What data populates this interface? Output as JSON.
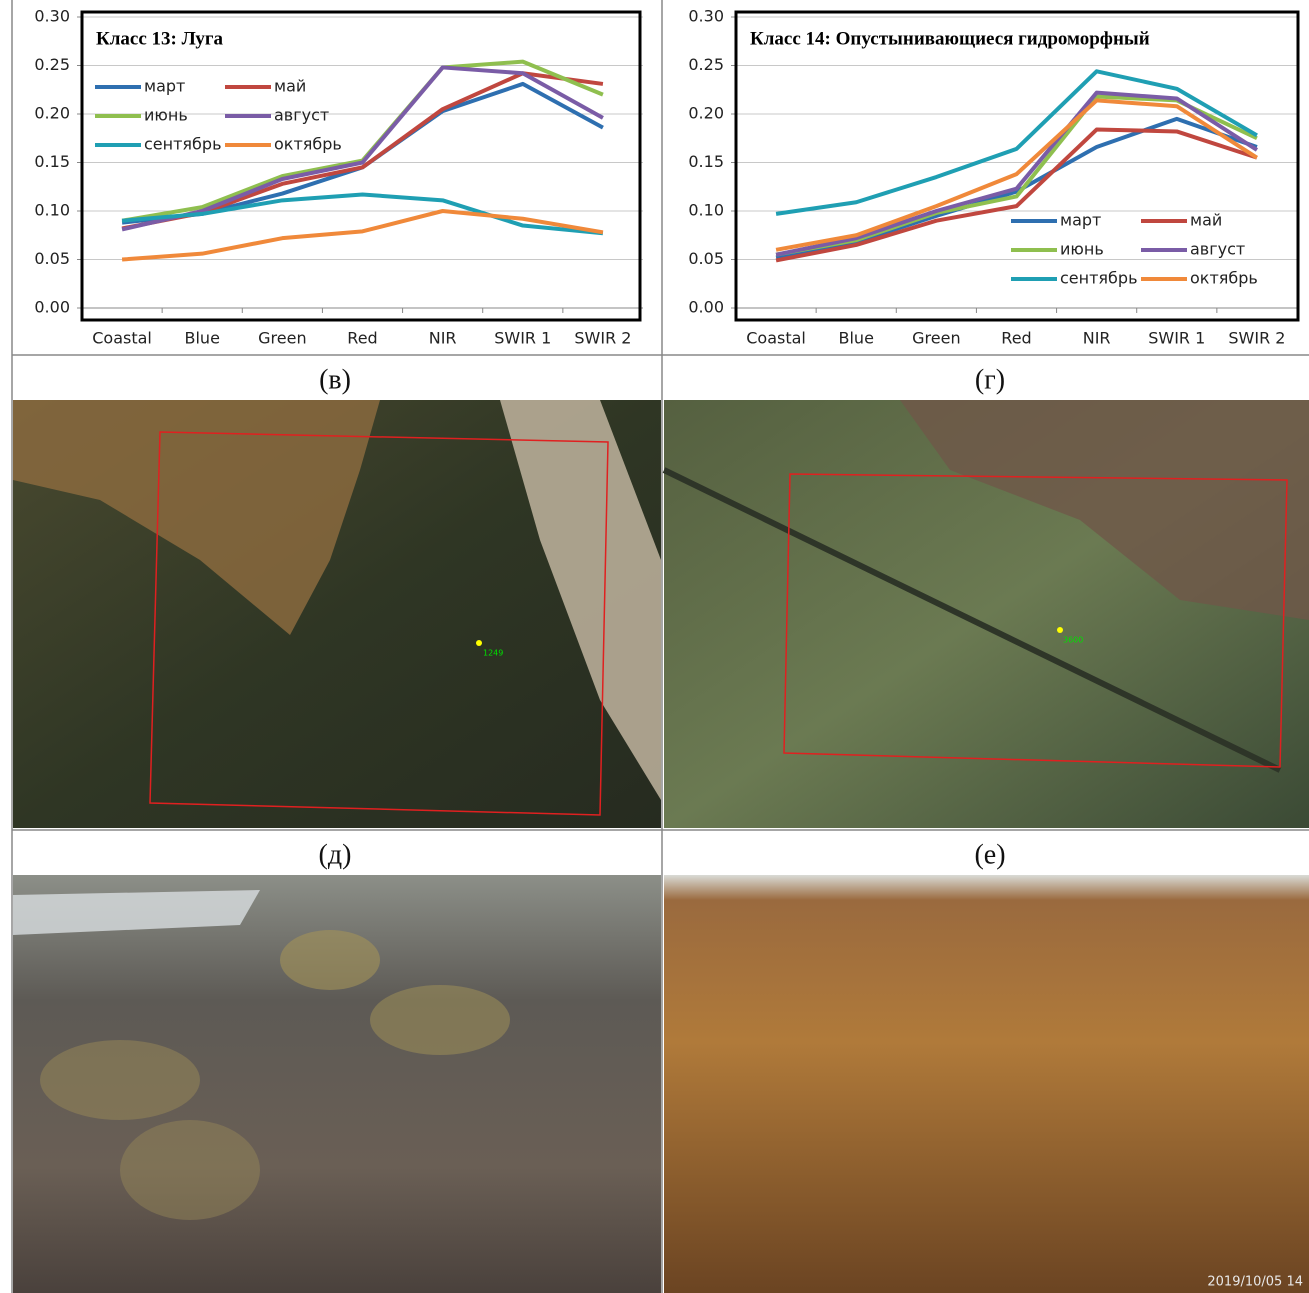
{
  "chart_data": [
    {
      "type": "line",
      "title": "Класс 13: Луга",
      "categories": [
        "Coastal",
        "Blue",
        "Green",
        "Red",
        "NIR",
        "SWIR 1",
        "SWIR 2"
      ],
      "series": [
        {
          "name": "март",
          "color": "#2e6fb0",
          "values": [
            0.088,
            0.097,
            0.118,
            0.145,
            0.203,
            0.231,
            0.186
          ]
        },
        {
          "name": "май",
          "color": "#c0473f",
          "values": [
            0.082,
            0.098,
            0.128,
            0.145,
            0.205,
            0.242,
            0.231
          ]
        },
        {
          "name": "июнь",
          "color": "#8fbf4f",
          "values": [
            0.09,
            0.104,
            0.136,
            0.152,
            0.248,
            0.254,
            0.22
          ]
        },
        {
          "name": "август",
          "color": "#7a5ca6",
          "values": [
            0.081,
            0.1,
            0.133,
            0.15,
            0.248,
            0.242,
            0.196
          ]
        },
        {
          "name": "сентябрь",
          "color": "#1f9fb3",
          "values": [
            0.09,
            0.097,
            0.111,
            0.117,
            0.111,
            0.085,
            0.077
          ]
        },
        {
          "name": "октябрь",
          "color": "#f0893a",
          "values": [
            0.05,
            0.056,
            0.072,
            0.079,
            0.1,
            0.092,
            0.078
          ]
        }
      ],
      "ylim": [
        0,
        0.3
      ],
      "yticks": [
        {
          "value": 0,
          "label": "0.00"
        },
        {
          "value": 0.05,
          "label": "0.05"
        },
        {
          "value": 0.1,
          "label": "0.10"
        },
        {
          "value": 0.15,
          "label": "0.15"
        },
        {
          "value": 0.2,
          "label": "0.20"
        },
        {
          "value": 0.25,
          "label": "0.25"
        },
        {
          "value": 0.3,
          "label": "0.30"
        }
      ],
      "grid": true,
      "legend": "upper left"
    },
    {
      "type": "line",
      "title": "Класс 14: Опустынивающиеся гидроморфный",
      "categories": [
        "Coastal",
        "Blue",
        "Green",
        "Red",
        "NIR",
        "SWIR 1",
        "SWIR 2"
      ],
      "series": [
        {
          "name": "март",
          "color": "#2e6fb0",
          "values": [
            0.052,
            0.068,
            0.095,
            0.12,
            0.166,
            0.195,
            0.166
          ]
        },
        {
          "name": "май",
          "color": "#c0473f",
          "values": [
            0.049,
            0.065,
            0.09,
            0.105,
            0.184,
            0.182,
            0.155
          ]
        },
        {
          "name": "июнь",
          "color": "#8fbf4f",
          "values": [
            0.055,
            0.07,
            0.098,
            0.115,
            0.218,
            0.214,
            0.175
          ]
        },
        {
          "name": "август",
          "color": "#7a5ca6",
          "values": [
            0.055,
            0.072,
            0.1,
            0.123,
            0.222,
            0.216,
            0.163
          ]
        },
        {
          "name": "сентябрь",
          "color": "#1f9fb3",
          "values": [
            0.097,
            0.109,
            0.135,
            0.164,
            0.244,
            0.226,
            0.178
          ]
        },
        {
          "name": "октябрь",
          "color": "#f0893a",
          "values": [
            0.06,
            0.075,
            0.105,
            0.138,
            0.214,
            0.208,
            0.155
          ]
        }
      ],
      "ylim": [
        0,
        0.3
      ],
      "yticks": [
        {
          "value": 0,
          "label": "0.00"
        },
        {
          "value": 0.05,
          "label": "0.05"
        },
        {
          "value": 0.1,
          "label": "0.10"
        },
        {
          "value": 0.15,
          "label": "0.15"
        },
        {
          "value": 0.2,
          "label": "0.20"
        },
        {
          "value": 0.25,
          "label": "0.25"
        },
        {
          "value": 0.3,
          "label": "0.30"
        }
      ],
      "grid": true,
      "legend": "lower right"
    }
  ],
  "captions": [
    "(в)",
    "(г)",
    "(д)",
    "(е)"
  ],
  "map_labels": [
    "1249",
    "3600"
  ],
  "photo_stamp": "2019/10/05 14"
}
